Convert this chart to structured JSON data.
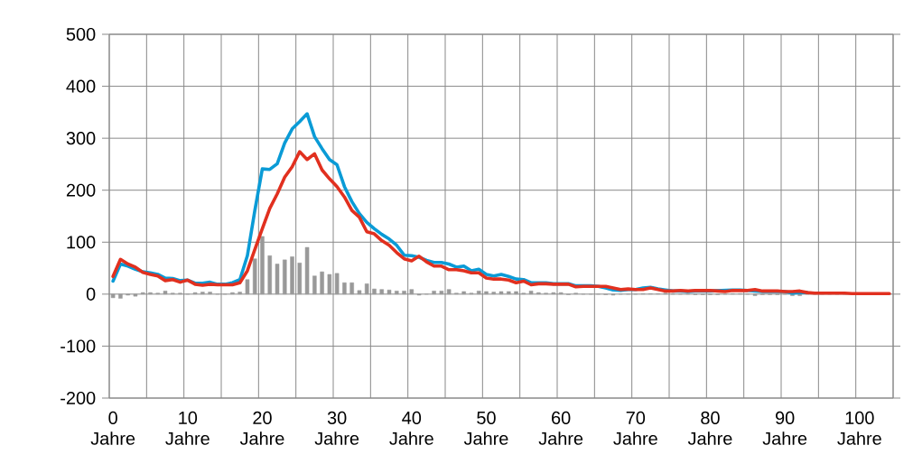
{
  "chart_data": {
    "type": "line",
    "categories": [
      "0 Jahre",
      null,
      null,
      null,
      null,
      null,
      null,
      null,
      null,
      null,
      "10 Jahre",
      null,
      null,
      null,
      null,
      null,
      null,
      null,
      null,
      null,
      "20 Jahre",
      null,
      null,
      null,
      null,
      null,
      null,
      null,
      null,
      null,
      "30 Jahre",
      null,
      null,
      null,
      null,
      null,
      null,
      null,
      null,
      null,
      "40 Jahre",
      null,
      null,
      null,
      null,
      null,
      null,
      null,
      null,
      null,
      "50 Jahre",
      null,
      null,
      null,
      null,
      null,
      null,
      null,
      null,
      null,
      "60 Jahre",
      null,
      null,
      null,
      null,
      null,
      null,
      null,
      null,
      null,
      "70 Jahre",
      null,
      null,
      null,
      null,
      null,
      null,
      null,
      null,
      null,
      "80 Jahre",
      null,
      null,
      null,
      null,
      null,
      null,
      null,
      null,
      null,
      "90 Jahre",
      null,
      null,
      null,
      null,
      null,
      null,
      null,
      null,
      null,
      "100 Jahre",
      null,
      null,
      null,
      null
    ],
    "series": [
      {
        "type": "bar",
        "color": "#999999",
        "values": [
          -7,
          -8,
          -2,
          -4,
          3,
          3,
          2,
          6,
          2,
          2,
          0,
          3,
          4,
          4,
          0,
          0,
          3,
          4,
          28,
          68,
          111,
          74,
          58,
          66,
          72,
          60,
          90,
          35,
          43,
          38,
          40,
          22,
          22,
          7,
          20,
          10,
          9,
          8,
          6,
          6,
          9,
          -2,
          0,
          6,
          6,
          9,
          2,
          5,
          2,
          6,
          5,
          4,
          5,
          5,
          5,
          2,
          6,
          3,
          2,
          3,
          3,
          -1,
          2,
          0,
          0,
          0,
          -1,
          -2,
          0,
          0,
          0,
          1,
          1,
          1,
          2,
          0,
          0,
          0,
          -1,
          -1,
          -1,
          -1,
          0,
          1,
          1,
          0,
          -3,
          -1,
          -1,
          -1,
          0,
          -3,
          -3,
          0,
          0,
          0,
          0,
          0,
          0,
          0,
          0,
          0,
          0,
          0,
          0
        ]
      },
      {
        "color": "#0a9bd6",
        "values": [
          25,
          58,
          54,
          48,
          43,
          41,
          38,
          31,
          30,
          26,
          27,
          21,
          21,
          23,
          19,
          19,
          22,
          28,
          74,
          161,
          241,
          240,
          251,
          291,
          318,
          332,
          347,
          303,
          280,
          259,
          249,
          207,
          178,
          155,
          138,
          126,
          115,
          106,
          94,
          75,
          74,
          71,
          65,
          61,
          61,
          58,
          52,
          54,
          45,
          48,
          38,
          35,
          38,
          34,
          29,
          28,
          22,
          22,
          22,
          20,
          20,
          20,
          16,
          16,
          16,
          15,
          12,
          8,
          7,
          9,
          9,
          12,
          13,
          10,
          8,
          6,
          6,
          5,
          6,
          6,
          6,
          null,
          null,
          8,
          8,
          7,
          6,
          5,
          5,
          5,
          5,
          2,
          3,
          3,
          null,
          null,
          null,
          null,
          null,
          null,
          null,
          null,
          null,
          null,
          null
        ]
      },
      {
        "color": "#e1301f",
        "values": [
          34,
          67,
          58,
          52,
          42,
          38,
          35,
          26,
          28,
          23,
          27,
          19,
          17,
          19,
          18,
          18,
          18,
          22,
          45,
          86,
          126,
          165,
          193,
          225,
          245,
          274,
          259,
          270,
          239,
          222,
          207,
          187,
          161,
          148,
          120,
          116,
          103,
          94,
          80,
          68,
          64,
          73,
          62,
          54,
          54,
          47,
          47,
          45,
          41,
          41,
          31,
          29,
          29,
          27,
          22,
          25,
          18,
          20,
          20,
          19,
          19,
          19,
          14,
          15,
          15,
          15,
          15,
          12,
          9,
          10,
          9,
          9,
          12,
          9,
          6,
          6,
          7,
          6,
          7,
          7,
          7,
          6,
          5,
          7,
          7,
          7,
          9,
          6,
          6,
          6,
          5,
          5,
          6,
          3,
          2,
          2,
          2,
          2,
          2,
          1,
          1,
          1,
          1,
          1,
          1
        ]
      }
    ],
    "ylim": [
      -200,
      500
    ],
    "yticks": [
      -200,
      -100,
      0,
      100,
      200,
      300,
      400,
      500
    ],
    "grid": true
  }
}
